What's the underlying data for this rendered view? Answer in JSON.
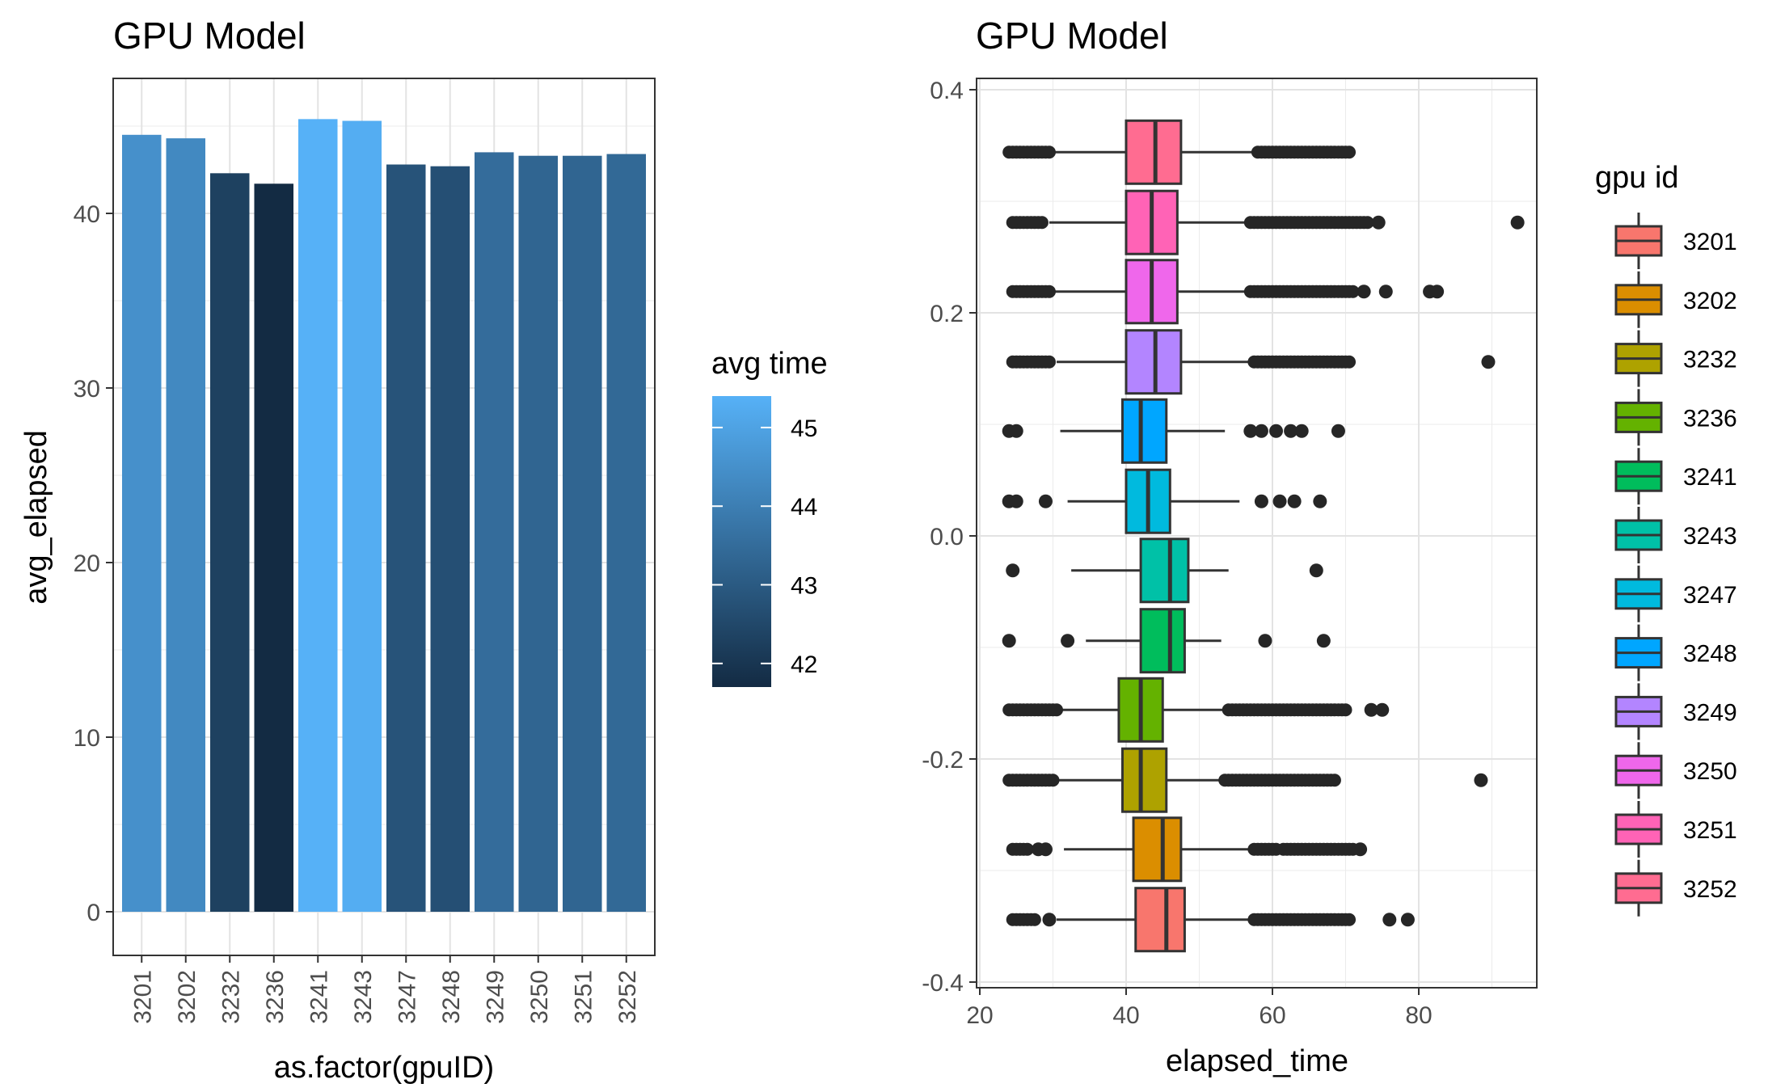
{
  "chart_data": [
    {
      "type": "bar",
      "title": "GPU Model",
      "xlabel": "as.factor(gpuID)",
      "ylabel": "avg_elapsed",
      "ylim": [
        0,
        47
      ],
      "yticks": [
        0,
        10,
        20,
        30,
        40
      ],
      "categories": [
        "3201",
        "3202",
        "3232",
        "3236",
        "3241",
        "3243",
        "3247",
        "3248",
        "3249",
        "3250",
        "3251",
        "3252"
      ],
      "values": [
        44.5,
        44.3,
        42.3,
        41.7,
        45.4,
        45.3,
        42.8,
        42.7,
        43.5,
        43.3,
        43.3,
        43.4
      ],
      "grid": true,
      "legend": {
        "title": "avg time",
        "type": "colorbar",
        "range": [
          41.7,
          45.4
        ],
        "ticks": [
          42,
          43,
          44,
          45
        ],
        "colors": {
          "low": "#132B43",
          "high": "#56B1F7"
        },
        "placement": "right"
      }
    },
    {
      "type": "box",
      "title": "GPU Model",
      "xlabel": "elapsed_time",
      "ylabel": "",
      "xlim": [
        20,
        96
      ],
      "ylim": [
        -0.4,
        0.4
      ],
      "xticks": [
        20,
        40,
        60,
        80
      ],
      "yticks": [
        "-0.4",
        "-0.2",
        "0.0",
        "0.2",
        "0.4"
      ],
      "grid": true,
      "series": [
        {
          "name": "3201",
          "y": -0.344,
          "q1": 41.3,
          "median": 45.5,
          "q3": 48.0,
          "lower": 30.5,
          "upper": 58.0,
          "out_ranges": [
            [
              24.5,
              27.5
            ],
            [
              57.5,
              70.5
            ]
          ],
          "out_points": [
            29.5,
            76.0,
            78.5
          ],
          "color": "#F8766D"
        },
        {
          "name": "3202",
          "y": -0.281,
          "q1": 41.0,
          "median": 45.0,
          "q3": 47.5,
          "lower": 31.5,
          "upper": 57.5,
          "out_ranges": [
            [
              24.5,
              26.5
            ],
            [
              57.5,
              60.5
            ],
            [
              61.5,
              71.0
            ]
          ],
          "out_points": [
            28.0,
            29.0,
            72.0
          ],
          "color": "#DB8E00"
        },
        {
          "name": "3232",
          "y": -0.219,
          "q1": 39.5,
          "median": 42.0,
          "q3": 45.5,
          "lower": 30.0,
          "upper": 53.5,
          "out_ranges": [
            [
              24.0,
              30.0
            ],
            [
              53.5,
              68.5
            ]
          ],
          "out_points": [
            88.5
          ],
          "color": "#AEA200"
        },
        {
          "name": "3236",
          "y": -0.156,
          "q1": 39.0,
          "median": 42.0,
          "q3": 45.0,
          "lower": 30.0,
          "upper": 54.0,
          "out_ranges": [
            [
              24.0,
              30.5
            ],
            [
              54.0,
              70.0
            ]
          ],
          "out_points": [
            73.5,
            75.0
          ],
          "color": "#64B200"
        },
        {
          "name": "3241",
          "y": -0.094,
          "q1": 42.0,
          "median": 46.0,
          "q3": 48.0,
          "lower": 34.5,
          "upper": 53.0,
          "out_ranges": [],
          "out_points": [
            24.0,
            32.0,
            59.0,
            67.0
          ],
          "color": "#00BD5C"
        },
        {
          "name": "3243",
          "y": -0.031,
          "q1": 42.0,
          "median": 46.0,
          "q3": 48.5,
          "lower": 32.5,
          "upper": 54.0,
          "out_ranges": [],
          "out_points": [
            24.5,
            66.0
          ],
          "color": "#00C1A7"
        },
        {
          "name": "3247",
          "y": 0.031,
          "q1": 40.0,
          "median": 43.0,
          "q3": 46.0,
          "lower": 32.0,
          "upper": 55.5,
          "out_ranges": [],
          "out_points": [
            24.0,
            25.0,
            29.0,
            58.5,
            61.0,
            63.0,
            66.5
          ],
          "color": "#00BADE"
        },
        {
          "name": "3248",
          "y": 0.094,
          "q1": 39.5,
          "median": 42.0,
          "q3": 45.5,
          "lower": 31.0,
          "upper": 53.5,
          "out_ranges": [],
          "out_points": [
            24.0,
            25.0,
            57.0,
            58.5,
            60.5,
            62.5,
            64.0,
            69.0
          ],
          "color": "#00A6FF"
        },
        {
          "name": "3249",
          "y": 0.156,
          "q1": 40.0,
          "median": 44.0,
          "q3": 47.5,
          "lower": 30.5,
          "upper": 57.5,
          "out_ranges": [
            [
              24.5,
              29.5
            ],
            [
              57.5,
              70.5
            ]
          ],
          "out_points": [
            89.5
          ],
          "color": "#B385FF"
        },
        {
          "name": "3250",
          "y": 0.219,
          "q1": 40.0,
          "median": 43.5,
          "q3": 47.0,
          "lower": 29.5,
          "upper": 57.0,
          "out_ranges": [
            [
              24.5,
              29.5
            ],
            [
              57.0,
              71.0
            ]
          ],
          "out_points": [
            72.5,
            75.5,
            81.5,
            82.5
          ],
          "color": "#EF67EB"
        },
        {
          "name": "3251",
          "y": 0.281,
          "q1": 40.0,
          "median": 43.5,
          "q3": 47.0,
          "lower": 29.5,
          "upper": 57.0,
          "out_ranges": [
            [
              24.5,
              28.5
            ],
            [
              57.0,
              73.0
            ]
          ],
          "out_points": [
            74.5,
            93.5
          ],
          "color": "#FF63B6"
        },
        {
          "name": "3252",
          "y": 0.344,
          "q1": 40.0,
          "median": 44.0,
          "q3": 47.5,
          "lower": 29.0,
          "upper": 58.0,
          "out_ranges": [
            [
              24.0,
              29.5
            ],
            [
              58.0,
              70.5
            ]
          ],
          "out_points": [],
          "color": "#FF6C91"
        }
      ],
      "legend": {
        "title": "gpu id",
        "placement": "right",
        "items": [
          {
            "label": "3201",
            "color": "#F8766D"
          },
          {
            "label": "3202",
            "color": "#DB8E00"
          },
          {
            "label": "3232",
            "color": "#AEA200"
          },
          {
            "label": "3236",
            "color": "#64B200"
          },
          {
            "label": "3241",
            "color": "#00BD5C"
          },
          {
            "label": "3243",
            "color": "#00C1A7"
          },
          {
            "label": "3247",
            "color": "#00BADE"
          },
          {
            "label": "3248",
            "color": "#00A6FF"
          },
          {
            "label": "3249",
            "color": "#B385FF"
          },
          {
            "label": "3250",
            "color": "#EF67EB"
          },
          {
            "label": "3251",
            "color": "#FF63B6"
          },
          {
            "label": "3252",
            "color": "#FF6C91"
          }
        ]
      }
    }
  ]
}
